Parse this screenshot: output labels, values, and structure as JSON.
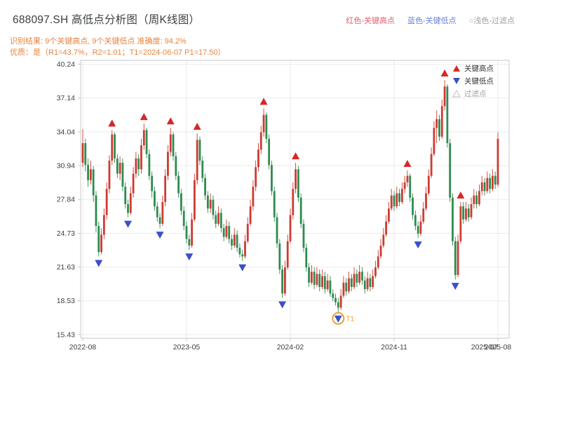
{
  "header": {
    "title": "688097.SH 高低点分析图（周K线图）",
    "top_legend": [
      {
        "text": "红色-关键高点",
        "color": "#e06070"
      },
      {
        "text": "蓝色-关键低点",
        "color": "#6a7fd6"
      },
      {
        "text": "○浅色-过滤点",
        "color": "#9aa0a6"
      }
    ],
    "result_line": "识别结果: 9个关键高点, 9个关键低点  准确度: 94.2%",
    "quality_line": "优质：是（R1=43.7%，R2=1.01；T1=2024-06-07 P1=17.50）",
    "accent_color": "#e8833a"
  },
  "chart_data": {
    "type": "candlestick",
    "title": "688097.SH 高低点分析图（周K线图）",
    "xlabel": "",
    "ylabel": "",
    "freq": "weekly",
    "x_tick_labels": [
      "2022-08",
      "2023-05",
      "2024-02",
      "2024-11",
      "2025-08"
    ],
    "x_tick_indices": [
      0,
      39,
      78,
      117,
      156
    ],
    "x_overlap_label": {
      "label": "2025-07",
      "index": 151
    },
    "y_ticks": [
      15.43,
      18.53,
      21.63,
      24.73,
      27.84,
      30.94,
      34.04,
      37.14,
      40.24
    ],
    "ylim": [
      15.43,
      40.24
    ],
    "grid": true,
    "candles_format": [
      "open",
      "high",
      "low",
      "close"
    ],
    "candles": [
      [
        31.2,
        34.3,
        30.8,
        33.0
      ],
      [
        33.0,
        33.4,
        30.4,
        31.0
      ],
      [
        31.0,
        31.6,
        29.0,
        29.6
      ],
      [
        29.6,
        31.4,
        29.2,
        30.6
      ],
      [
        30.6,
        30.9,
        27.6,
        28.2
      ],
      [
        28.2,
        28.6,
        24.8,
        25.4
      ],
      [
        25.4,
        25.8,
        22.6,
        23.0
      ],
      [
        23.0,
        25.2,
        22.8,
        24.6
      ],
      [
        24.6,
        27.0,
        24.2,
        26.4
      ],
      [
        26.4,
        29.4,
        26.0,
        28.8
      ],
      [
        28.8,
        31.9,
        28.4,
        31.4
      ],
      [
        31.4,
        34.2,
        31.0,
        33.8
      ],
      [
        33.8,
        34.0,
        31.2,
        31.6
      ],
      [
        31.6,
        32.0,
        29.8,
        30.2
      ],
      [
        30.2,
        31.8,
        29.6,
        31.2
      ],
      [
        31.2,
        31.6,
        28.6,
        29.0
      ],
      [
        29.0,
        29.4,
        27.0,
        27.4
      ],
      [
        27.4,
        27.8,
        26.2,
        26.6
      ],
      [
        26.6,
        29.0,
        26.4,
        28.4
      ],
      [
        28.4,
        30.8,
        28.0,
        30.2
      ],
      [
        30.2,
        32.2,
        29.8,
        31.6
      ],
      [
        31.6,
        32.0,
        30.0,
        30.6
      ],
      [
        30.6,
        33.4,
        30.2,
        32.8
      ],
      [
        32.8,
        34.8,
        32.4,
        34.2
      ],
      [
        34.2,
        34.4,
        31.6,
        32.0
      ],
      [
        32.0,
        32.4,
        29.6,
        30.0
      ],
      [
        30.0,
        30.4,
        28.0,
        28.6
      ],
      [
        28.6,
        29.0,
        26.8,
        27.2
      ],
      [
        27.2,
        27.6,
        25.8,
        26.2
      ],
      [
        26.2,
        26.6,
        25.2,
        25.6
      ],
      [
        25.6,
        28.2,
        25.4,
        27.6
      ],
      [
        27.6,
        30.6,
        27.2,
        30.0
      ],
      [
        30.0,
        32.8,
        29.6,
        32.2
      ],
      [
        32.2,
        34.4,
        31.8,
        33.8
      ],
      [
        33.8,
        34.0,
        31.4,
        31.8
      ],
      [
        31.8,
        32.2,
        29.6,
        30.0
      ],
      [
        30.0,
        30.4,
        28.0,
        28.4
      ],
      [
        28.4,
        28.8,
        26.4,
        26.8
      ],
      [
        26.8,
        27.2,
        25.0,
        25.4
      ],
      [
        25.4,
        25.8,
        23.8,
        24.2
      ],
      [
        24.2,
        24.6,
        23.2,
        23.6
      ],
      [
        23.6,
        26.6,
        23.4,
        26.0
      ],
      [
        26.0,
        30.2,
        25.8,
        29.6
      ],
      [
        29.6,
        33.9,
        29.2,
        33.3
      ],
      [
        33.3,
        33.6,
        31.0,
        31.4
      ],
      [
        31.4,
        31.8,
        29.4,
        29.8
      ],
      [
        29.8,
        30.2,
        27.8,
        28.2
      ],
      [
        28.2,
        28.6,
        26.6,
        27.0
      ],
      [
        27.0,
        28.4,
        26.6,
        27.8
      ],
      [
        27.8,
        28.2,
        26.0,
        26.4
      ],
      [
        26.4,
        26.8,
        25.2,
        25.6
      ],
      [
        25.6,
        27.2,
        25.4,
        26.6
      ],
      [
        26.6,
        27.0,
        24.8,
        25.2
      ],
      [
        25.2,
        25.6,
        24.0,
        24.4
      ],
      [
        24.4,
        26.0,
        24.2,
        25.4
      ],
      [
        25.4,
        25.8,
        23.8,
        24.2
      ],
      [
        24.2,
        24.6,
        23.2,
        23.6
      ],
      [
        23.6,
        25.2,
        23.4,
        24.6
      ],
      [
        24.6,
        25.0,
        23.0,
        23.4
      ],
      [
        23.4,
        23.8,
        22.5,
        22.8
      ],
      [
        22.8,
        23.2,
        22.2,
        22.6
      ],
      [
        22.6,
        24.6,
        22.4,
        24.0
      ],
      [
        24.0,
        26.2,
        23.8,
        25.6
      ],
      [
        25.6,
        27.8,
        25.4,
        27.2
      ],
      [
        27.2,
        29.6,
        26.8,
        29.0
      ],
      [
        29.0,
        31.4,
        28.6,
        30.8
      ],
      [
        30.8,
        33.0,
        30.4,
        32.4
      ],
      [
        32.4,
        34.6,
        32.0,
        34.0
      ],
      [
        34.0,
        36.2,
        33.6,
        35.6
      ],
      [
        35.6,
        35.8,
        33.0,
        33.4
      ],
      [
        33.4,
        33.8,
        30.6,
        31.0
      ],
      [
        31.0,
        31.4,
        28.2,
        28.6
      ],
      [
        28.6,
        29.0,
        25.8,
        26.2
      ],
      [
        26.2,
        26.6,
        23.4,
        23.8
      ],
      [
        23.8,
        24.2,
        21.0,
        21.4
      ],
      [
        21.4,
        21.8,
        18.8,
        19.2
      ],
      [
        19.2,
        22.2,
        19.0,
        21.6
      ],
      [
        21.6,
        24.6,
        21.4,
        24.0
      ],
      [
        24.0,
        27.0,
        23.8,
        26.4
      ],
      [
        26.4,
        29.4,
        26.0,
        28.8
      ],
      [
        28.8,
        31.2,
        28.4,
        30.6
      ],
      [
        30.6,
        30.9,
        27.6,
        28.0
      ],
      [
        28.0,
        28.4,
        25.2,
        25.6
      ],
      [
        25.6,
        26.0,
        23.0,
        23.4
      ],
      [
        23.4,
        23.8,
        21.2,
        21.6
      ],
      [
        21.6,
        22.0,
        19.8,
        20.2
      ],
      [
        20.2,
        21.8,
        20.0,
        21.2
      ],
      [
        21.2,
        21.6,
        19.6,
        20.0
      ],
      [
        20.0,
        21.6,
        19.8,
        21.0
      ],
      [
        21.0,
        21.4,
        19.4,
        19.8
      ],
      [
        19.8,
        21.4,
        19.6,
        20.8
      ],
      [
        20.8,
        21.2,
        19.2,
        19.6
      ],
      [
        19.6,
        21.0,
        19.4,
        20.4
      ],
      [
        20.4,
        20.8,
        18.9,
        19.2
      ],
      [
        19.2,
        19.6,
        18.5,
        18.8
      ],
      [
        18.8,
        19.2,
        18.1,
        18.4
      ],
      [
        18.4,
        18.8,
        17.5,
        17.9
      ],
      [
        17.9,
        19.6,
        17.7,
        19.0
      ],
      [
        19.0,
        20.8,
        18.8,
        20.2
      ],
      [
        20.2,
        20.6,
        19.0,
        19.4
      ],
      [
        19.4,
        21.2,
        19.2,
        20.6
      ],
      [
        20.6,
        21.0,
        19.4,
        19.8
      ],
      [
        19.8,
        21.6,
        19.6,
        21.0
      ],
      [
        21.0,
        21.4,
        19.8,
        20.2
      ],
      [
        20.2,
        21.8,
        20.0,
        21.2
      ],
      [
        21.2,
        21.6,
        20.0,
        20.4
      ],
      [
        20.4,
        20.8,
        19.2,
        19.6
      ],
      [
        19.6,
        21.2,
        19.4,
        20.6
      ],
      [
        20.6,
        21.0,
        19.4,
        19.8
      ],
      [
        19.8,
        21.4,
        19.6,
        20.8
      ],
      [
        20.8,
        22.2,
        20.6,
        21.6
      ],
      [
        21.6,
        23.2,
        21.4,
        22.6
      ],
      [
        22.6,
        24.2,
        22.4,
        23.6
      ],
      [
        23.6,
        25.2,
        23.4,
        24.6
      ],
      [
        24.6,
        26.4,
        24.4,
        25.8
      ],
      [
        25.8,
        27.6,
        25.6,
        27.0
      ],
      [
        27.0,
        28.8,
        26.8,
        28.2
      ],
      [
        28.2,
        28.6,
        26.8,
        27.2
      ],
      [
        27.2,
        29.0,
        27.0,
        28.4
      ],
      [
        28.4,
        28.8,
        27.2,
        27.6
      ],
      [
        27.6,
        29.4,
        27.4,
        28.8
      ],
      [
        28.8,
        30.0,
        28.4,
        29.4
      ],
      [
        29.4,
        30.5,
        29.0,
        30.0
      ],
      [
        30.0,
        30.2,
        27.6,
        28.0
      ],
      [
        28.0,
        28.4,
        26.0,
        26.4
      ],
      [
        26.4,
        26.8,
        25.0,
        25.4
      ],
      [
        25.4,
        25.8,
        24.3,
        24.7
      ],
      [
        24.7,
        26.4,
        24.5,
        25.8
      ],
      [
        25.8,
        27.6,
        25.6,
        27.0
      ],
      [
        27.0,
        29.0,
        26.8,
        28.4
      ],
      [
        28.4,
        30.6,
        28.2,
        30.0
      ],
      [
        30.0,
        32.6,
        29.8,
        32.0
      ],
      [
        32.0,
        35.0,
        31.8,
        34.4
      ],
      [
        34.4,
        36.0,
        33.0,
        35.2
      ],
      [
        35.2,
        35.6,
        33.2,
        33.6
      ],
      [
        33.6,
        37.0,
        33.4,
        36.4
      ],
      [
        36.4,
        38.8,
        36.0,
        38.2
      ],
      [
        38.2,
        38.4,
        32.6,
        33.0
      ],
      [
        33.0,
        33.4,
        27.6,
        28.0
      ],
      [
        28.0,
        28.4,
        23.6,
        24.0
      ],
      [
        24.0,
        24.4,
        20.5,
        20.9
      ],
      [
        20.9,
        24.6,
        20.7,
        24.0
      ],
      [
        24.0,
        27.6,
        23.8,
        27.2
      ],
      [
        27.2,
        27.6,
        25.6,
        26.0
      ],
      [
        26.0,
        27.6,
        25.8,
        27.0
      ],
      [
        27.0,
        27.4,
        25.8,
        26.2
      ],
      [
        26.2,
        28.0,
        26.0,
        27.4
      ],
      [
        27.4,
        28.8,
        27.0,
        28.2
      ],
      [
        28.2,
        28.6,
        27.0,
        27.4
      ],
      [
        27.4,
        29.2,
        27.2,
        28.6
      ],
      [
        28.6,
        30.0,
        28.2,
        29.4
      ],
      [
        29.4,
        29.8,
        28.2,
        28.6
      ],
      [
        28.6,
        30.4,
        28.4,
        29.8
      ],
      [
        29.8,
        30.2,
        28.4,
        28.8
      ],
      [
        28.8,
        30.6,
        28.6,
        30.0
      ],
      [
        30.0,
        30.4,
        28.8,
        29.2
      ],
      [
        29.2,
        34.0,
        29.0,
        33.4
      ]
    ],
    "key_highs": [
      [
        11,
        34.2
      ],
      [
        23,
        34.8
      ],
      [
        33,
        34.4
      ],
      [
        43,
        33.9
      ],
      [
        68,
        36.2
      ],
      [
        80,
        31.2
      ],
      [
        122,
        30.5
      ],
      [
        136,
        38.8
      ],
      [
        142,
        27.6
      ]
    ],
    "key_lows": [
      [
        6,
        22.6
      ],
      [
        17,
        26.2
      ],
      [
        29,
        25.2
      ],
      [
        40,
        23.2
      ],
      [
        60,
        22.2
      ],
      [
        75,
        18.8
      ],
      [
        96,
        17.5
      ],
      [
        126,
        24.3
      ],
      [
        140,
        20.5
      ]
    ],
    "t1": {
      "index": 96,
      "price": 17.5,
      "label": "T1"
    },
    "legend": [
      {
        "label": "关键高点",
        "marker": "triangle-up",
        "color": "#d62728"
      },
      {
        "label": "关键低点",
        "marker": "triangle-down",
        "color": "#3a50c8"
      },
      {
        "label": "过滤点",
        "marker": "triangle-up-hollow",
        "color": "#bdbdbd"
      }
    ],
    "legend_position": "upper right",
    "colors": {
      "up": "#cc3b33",
      "down": "#2e8b50",
      "high_marker": "#d62728",
      "low_marker": "#3a50c8",
      "t1": "#f0a030",
      "grid": "#ebebeb",
      "axis": "#c8c8c8",
      "tick_text": "#3c4043"
    }
  }
}
